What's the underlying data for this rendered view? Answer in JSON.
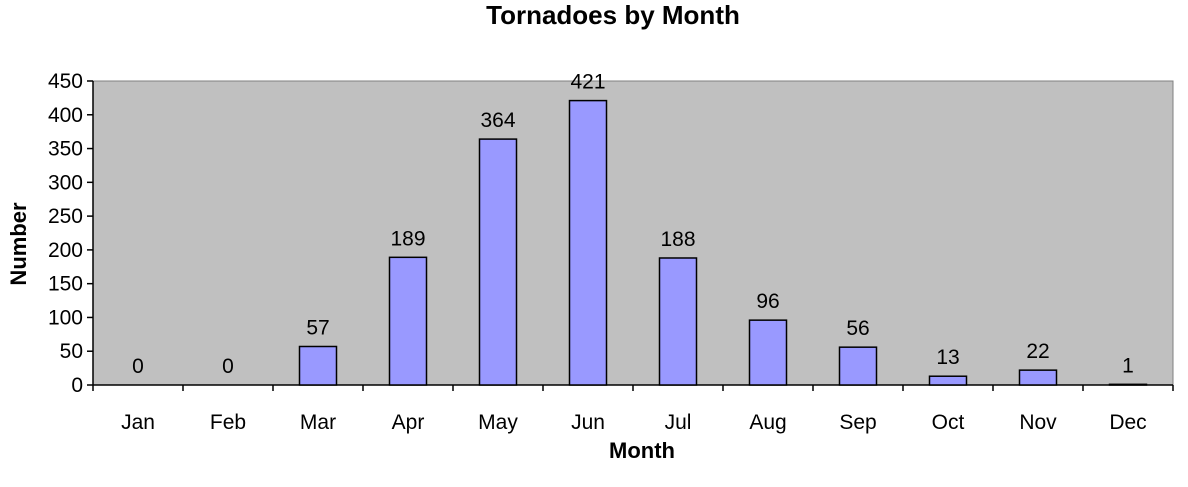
{
  "chart_data": {
    "type": "bar",
    "title": "Tornadoes by Month",
    "xlabel": "Month",
    "ylabel": "Number",
    "categories": [
      "Jan",
      "Feb",
      "Mar",
      "Apr",
      "May",
      "Jun",
      "Jul",
      "Aug",
      "Sep",
      "Oct",
      "Nov",
      "Dec"
    ],
    "values": [
      0,
      0,
      57,
      189,
      364,
      421,
      188,
      96,
      56,
      13,
      22,
      1
    ],
    "ylim": [
      0,
      450
    ],
    "yticks": [
      0,
      50,
      100,
      150,
      200,
      250,
      300,
      350,
      400,
      450
    ],
    "grid": false,
    "legend": "none",
    "colors": {
      "plot_background": "#c0c0c0",
      "bar_fill": "#9999ff",
      "bar_stroke": "#000000",
      "axis": "#000000"
    }
  }
}
